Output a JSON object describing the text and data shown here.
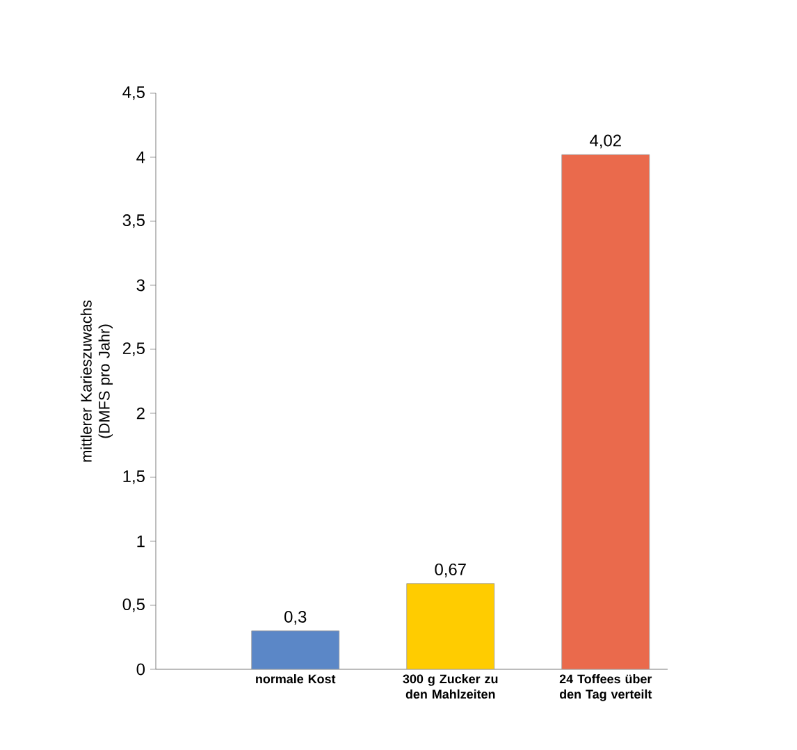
{
  "chart_data": {
    "type": "bar",
    "ylabel": "mittlerer Karieszuwachs (DMFS pro Jahr)",
    "categories": [
      "normale Kost",
      "300 g Zucker zu den Mahlzeiten",
      "24 Toffees über den Tag verteilt"
    ],
    "values": [
      0.3,
      0.67,
      4.02
    ],
    "value_labels": [
      "0,3",
      "0,67",
      "4,02"
    ],
    "colors": [
      "#5b87c7",
      "#ffcc00",
      "#ea6a4c"
    ],
    "ylim": [
      0,
      4.5
    ],
    "yticks": [
      0,
      {
        "value": 0.5,
        "label": "0,5"
      },
      1,
      {
        "value": 1.5,
        "label": "1,5"
      },
      2,
      {
        "value": 2.5,
        "label": "2,5"
      },
      3,
      {
        "value": 3.5,
        "label": "3,5"
      },
      4,
      {
        "value": 4.5,
        "label": "4,5"
      }
    ],
    "grid": false
  }
}
